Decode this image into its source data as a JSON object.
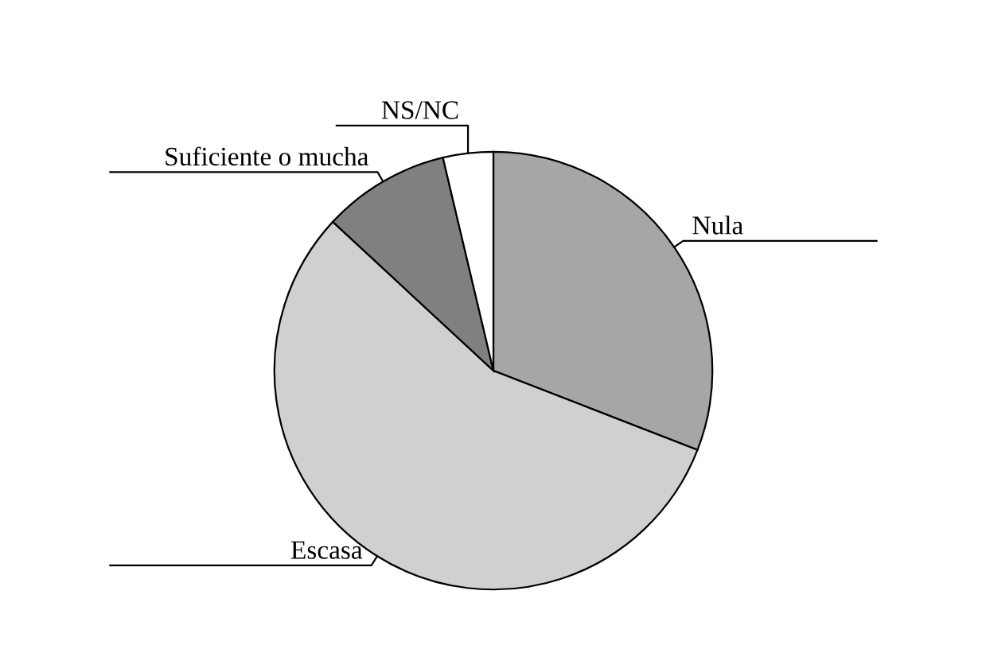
{
  "chart_data": {
    "type": "pie",
    "categories": [
      "Nula",
      "Escasa",
      "Suficiente o mucha",
      "NS/NC"
    ],
    "values": [
      30.9,
      56.0,
      9.4,
      3.7
    ],
    "colors": [
      "#a6a6a6",
      "#d0d0d0",
      "#808080",
      "#ffffff"
    ]
  }
}
